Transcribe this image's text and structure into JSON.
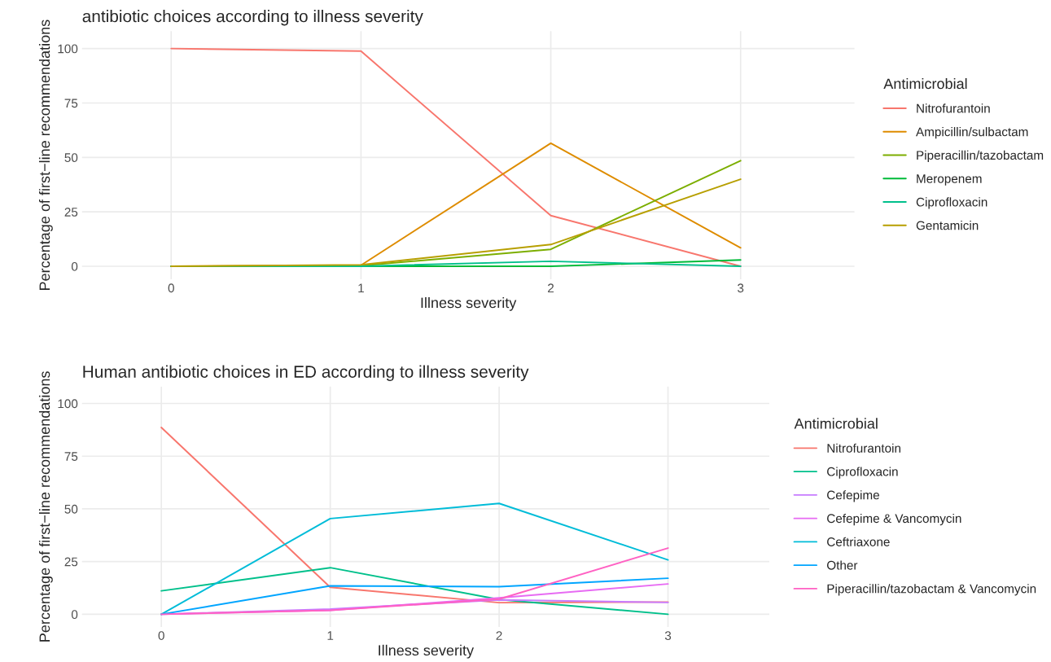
{
  "chart_data": [
    {
      "type": "line",
      "title": "antibiotic choices according to illness severity",
      "xlabel": "Illness severity",
      "ylabel": "Percentage of first−line recommendations",
      "legend_title": "Antimicrobial",
      "legend": "right",
      "grid": true,
      "x": [
        0,
        1,
        2,
        3
      ],
      "xlim": [
        -0.47,
        3.6
      ],
      "xticks": [
        0,
        1,
        2,
        3
      ],
      "ylim": [
        -6,
        108
      ],
      "yticks": [
        0,
        25,
        50,
        75,
        100
      ],
      "series": [
        {
          "name": "Nitrofurantoin",
          "color": "#f8766d",
          "values": [
            100,
            98.8,
            23.3,
            0
          ]
        },
        {
          "name": "Ampicillin/sulbactam",
          "color": "#de8c00",
          "values": [
            0,
            0.5,
            56.5,
            8.5
          ]
        },
        {
          "name": "Piperacillin/tazobactam",
          "color": "#7cae00",
          "values": [
            0,
            0.3,
            7.8,
            48.5
          ]
        },
        {
          "name": "Meropenem",
          "color": "#00ba38",
          "values": [
            0,
            0,
            0,
            2.9
          ]
        },
        {
          "name": "Ciprofloxacin",
          "color": "#00c08b",
          "values": [
            0,
            0,
            2.3,
            0
          ]
        },
        {
          "name": "Gentamicin",
          "color": "#b79f00",
          "values": [
            0,
            0.7,
            10,
            40
          ]
        }
      ]
    },
    {
      "type": "line",
      "title": "Human antibiotic choices in ED according to illness severity",
      "xlabel": "Illness severity",
      "ylabel": "Percentage of first−line recommendations",
      "legend_title": "Antimicrobial",
      "legend": "right",
      "grid": true,
      "x": [
        0,
        1,
        2,
        3
      ],
      "xlim": [
        -0.47,
        3.6
      ],
      "xticks": [
        0,
        1,
        2,
        3
      ],
      "ylim": [
        -6,
        108
      ],
      "yticks": [
        0,
        25,
        50,
        75,
        100
      ],
      "series": [
        {
          "name": "Nitrofurantoin",
          "color": "#f8766d",
          "values": [
            88.6,
            12.8,
            5.5,
            5.8
          ]
        },
        {
          "name": "Ciprofloxacin",
          "color": "#00c08b",
          "values": [
            11.1,
            22.1,
            7,
            0
          ]
        },
        {
          "name": "Cefepime",
          "color": "#c77cff",
          "values": [
            0,
            2.5,
            6.8,
            5.6
          ]
        },
        {
          "name": "Cefepime & Vancomycin",
          "color": "#e76bf3",
          "values": [
            0,
            1.9,
            7.8,
            14.4
          ]
        },
        {
          "name": "Ceftriaxone",
          "color": "#00bcd8",
          "values": [
            0,
            45.4,
            52.6,
            25.8
          ]
        },
        {
          "name": "Other",
          "color": "#00a5ff",
          "values": [
            0,
            13.5,
            13.1,
            17.1
          ]
        },
        {
          "name": "Piperacillin/tazobactam & Vancomycin",
          "color": "#ff61c3",
          "values": [
            0,
            1.9,
            7.2,
            31.4
          ]
        }
      ]
    }
  ]
}
